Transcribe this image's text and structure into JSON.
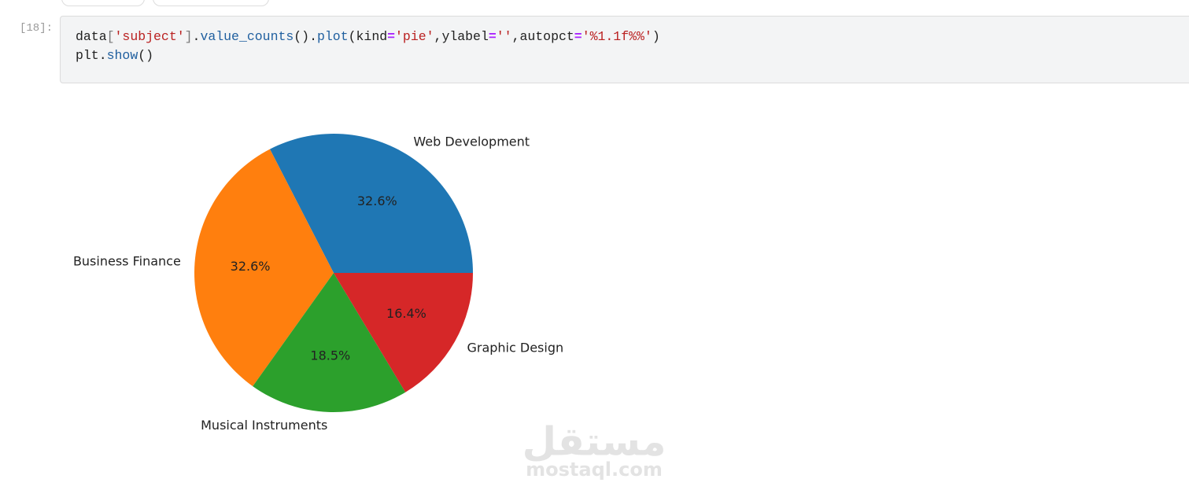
{
  "cell": {
    "prompt": "[18]:",
    "code": [
      [
        {
          "text": "data",
          "color": "#212121"
        },
        {
          "text": "[",
          "color": "#7a7a7a"
        },
        {
          "text": "'subject'",
          "color": "#ba2121"
        },
        {
          "text": "]",
          "color": "#7a7a7a"
        },
        {
          "text": ".",
          "color": "#212121"
        },
        {
          "text": "value_counts",
          "color": "#1f5f9f"
        },
        {
          "text": "().",
          "color": "#212121"
        },
        {
          "text": "plot",
          "color": "#1f5f9f"
        },
        {
          "text": "(kind",
          "color": "#212121"
        },
        {
          "text": "=",
          "color": "#aa22ff"
        },
        {
          "text": "'pie'",
          "color": "#ba2121"
        },
        {
          "text": ",ylabel",
          "color": "#212121"
        },
        {
          "text": "=",
          "color": "#aa22ff"
        },
        {
          "text": "''",
          "color": "#ba2121"
        },
        {
          "text": ",autopct",
          "color": "#212121"
        },
        {
          "text": "=",
          "color": "#aa22ff"
        },
        {
          "text": "'%1.1f%%'",
          "color": "#ba2121"
        },
        {
          "text": ")",
          "color": "#212121"
        }
      ],
      [
        {
          "text": "plt",
          "color": "#212121"
        },
        {
          "text": ".",
          "color": "#212121"
        },
        {
          "text": "show",
          "color": "#1f5f9f"
        },
        {
          "text": "()",
          "color": "#212121"
        }
      ]
    ]
  },
  "chart_data": {
    "type": "pie",
    "categories": [
      "Web Development",
      "Business Finance",
      "Musical Instruments",
      "Graphic Design"
    ],
    "values": [
      32.6,
      32.6,
      18.5,
      16.4
    ],
    "value_labels": [
      "32.6%",
      "32.6%",
      "18.5%",
      "16.4%"
    ],
    "colors": [
      "#1f77b4",
      "#ff7f0e",
      "#2ca02c",
      "#d62728"
    ]
  },
  "watermark": {
    "arabic": "مستقل",
    "site": "mostaql.com"
  }
}
